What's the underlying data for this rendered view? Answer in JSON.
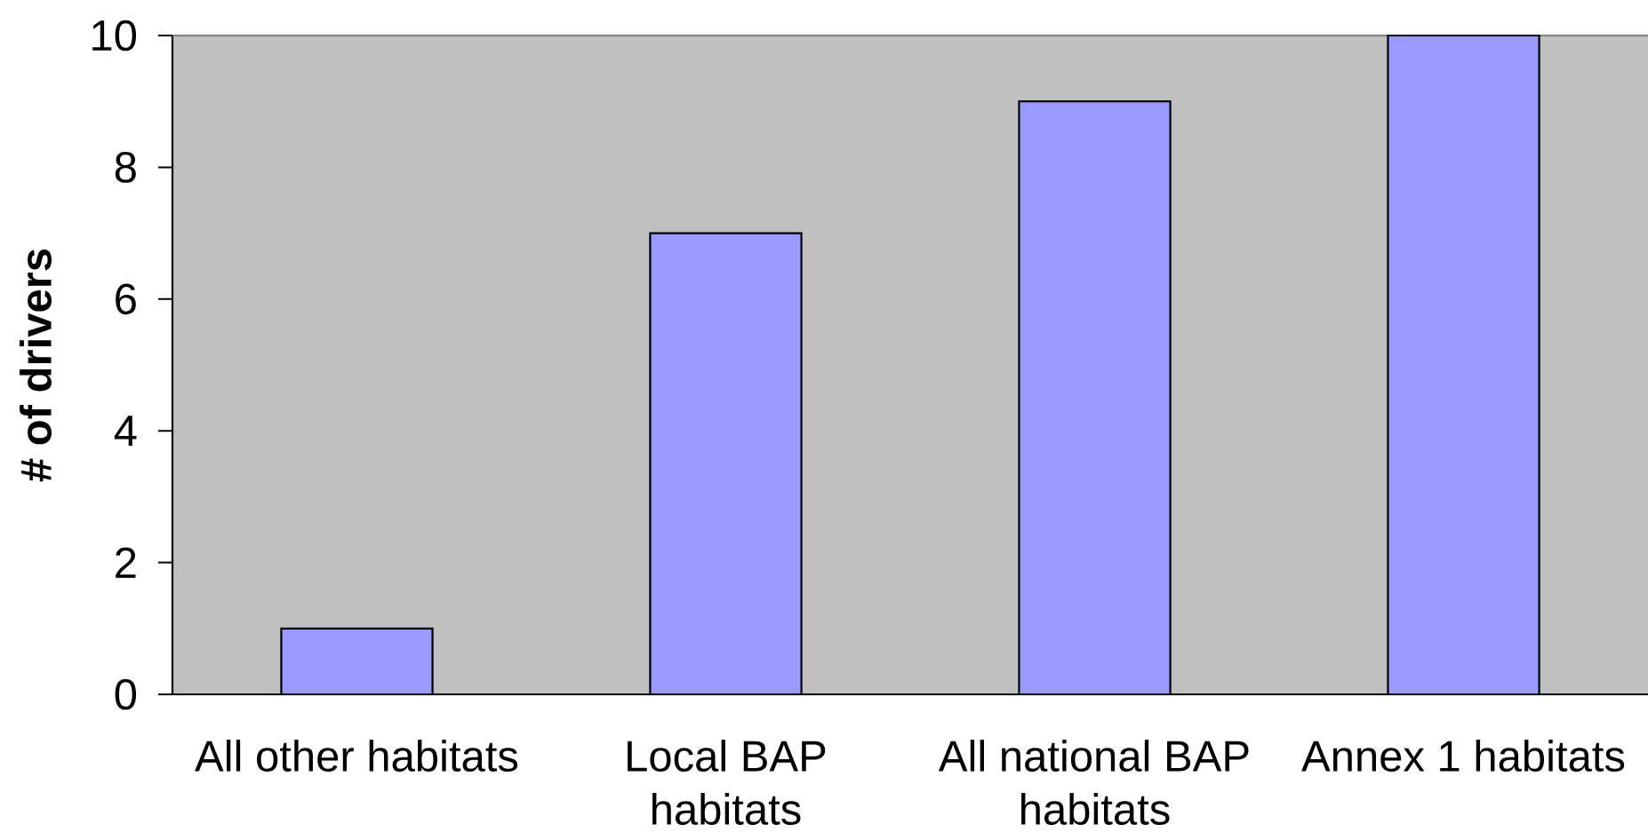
{
  "chart_data": {
    "type": "bar",
    "ylabel": "# of drivers",
    "categories": [
      "All other habitats",
      "Local BAP habitats",
      "All national BAP habitats",
      "Annex 1 habitats"
    ],
    "values": [
      1,
      7,
      9,
      10
    ],
    "color": "#9999ff",
    "ylim": [
      0,
      10
    ],
    "yticks": [
      0,
      2,
      4,
      6,
      8,
      10
    ]
  }
}
